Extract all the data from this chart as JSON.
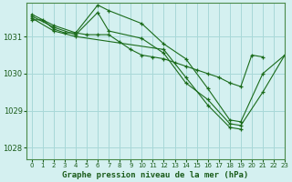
{
  "bg_color": "#d4f0f0",
  "grid_color": "#a8d8d8",
  "line_color": "#1a6b1a",
  "marker_color": "#1a6b1a",
  "title": "Graphe pression niveau de la mer (hPa)",
  "title_color": "#1a5c1a",
  "ylim": [
    1027.7,
    1031.9
  ],
  "xlim": [
    -0.5,
    23
  ],
  "yticks": [
    1028,
    1029,
    1030,
    1031
  ],
  "xticks": [
    0,
    1,
    2,
    3,
    4,
    5,
    6,
    7,
    8,
    9,
    10,
    11,
    12,
    13,
    14,
    15,
    16,
    17,
    18,
    19,
    20,
    21,
    22,
    23
  ],
  "series": [
    {
      "x": [
        0,
        1,
        2,
        3,
        4,
        5,
        6,
        7,
        8,
        9,
        10,
        11,
        12,
        13,
        14,
        15,
        16,
        17,
        18,
        19,
        20,
        21
      ],
      "y": [
        1031.45,
        1031.45,
        1031.2,
        1031.1,
        1031.1,
        1031.05,
        1031.05,
        1031.05,
        1030.85,
        1030.65,
        1030.5,
        1030.45,
        1030.4,
        1030.3,
        1030.2,
        1030.1,
        1030.0,
        1029.9,
        1029.75,
        1029.65,
        1030.5,
        1030.45
      ]
    },
    {
      "x": [
        0,
        2,
        4,
        6,
        7,
        10,
        12,
        14,
        16,
        18,
        19,
        21,
        23
      ],
      "y": [
        1031.6,
        1031.3,
        1031.1,
        1031.85,
        1031.7,
        1031.35,
        1030.8,
        1030.4,
        1029.6,
        1028.75,
        1028.7,
        1030.0,
        1030.5
      ]
    },
    {
      "x": [
        0,
        2,
        4,
        6,
        7,
        10,
        12,
        14,
        16,
        18,
        19,
        21,
        23
      ],
      "y": [
        1031.55,
        1031.25,
        1031.05,
        1031.65,
        1031.15,
        1030.95,
        1030.55,
        1029.75,
        1029.3,
        1028.65,
        1028.6,
        1029.5,
        1030.5
      ]
    },
    {
      "x": [
        0,
        2,
        4,
        12,
        14,
        16,
        18,
        19
      ],
      "y": [
        1031.5,
        1031.15,
        1031.0,
        1030.65,
        1029.9,
        1029.15,
        1028.55,
        1028.5
      ]
    }
  ]
}
